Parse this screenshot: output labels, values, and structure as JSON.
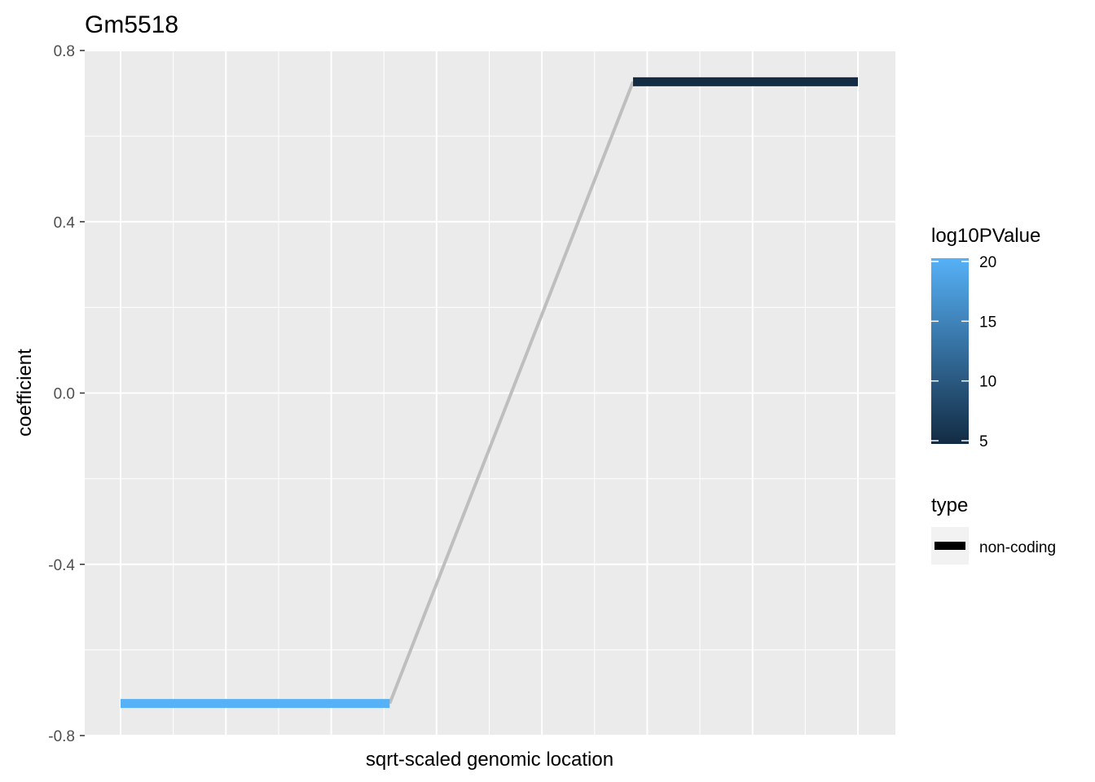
{
  "chart_data": {
    "type": "line",
    "title": "Gm5518",
    "xlabel": "sqrt-scaled genomic location",
    "ylabel": "coefficient",
    "ylim": [
      -0.8,
      0.8
    ],
    "yticks": [
      "0.8",
      "0.4",
      "0.0",
      "-0.4",
      "-0.8"
    ],
    "ytick_values": [
      0.8,
      0.4,
      0.0,
      -0.4,
      -0.8
    ],
    "xlim": [
      0,
      1
    ],
    "x_ticks_shown": false,
    "grid": true,
    "legend_position": "right",
    "segments": [
      {
        "x_start": 0.0,
        "x_end": 0.365,
        "coefficient": -0.725,
        "log10PValue": 20,
        "type": "non-coding"
      },
      {
        "x_start": 0.695,
        "x_end": 1.0,
        "coefficient": 0.727,
        "log10PValue": 5,
        "type": "non-coding"
      }
    ],
    "connector": {
      "from": [
        0.365,
        -0.725
      ],
      "to": [
        0.695,
        0.727
      ],
      "color": "#bebebe"
    },
    "color_legend": {
      "title": "log10PValue",
      "ticks": [
        "20",
        "15",
        "10",
        "5"
      ],
      "tick_values": [
        20,
        15,
        10,
        5
      ],
      "range": [
        5,
        20
      ],
      "low_color": "#132b43",
      "high_color": "#56b1f7"
    },
    "type_legend": {
      "title": "type",
      "entries": [
        "non-coding"
      ]
    },
    "colors": {
      "panel_bg": "#ebebeb",
      "grid": "#ffffff",
      "connector": "#bebebe"
    }
  }
}
